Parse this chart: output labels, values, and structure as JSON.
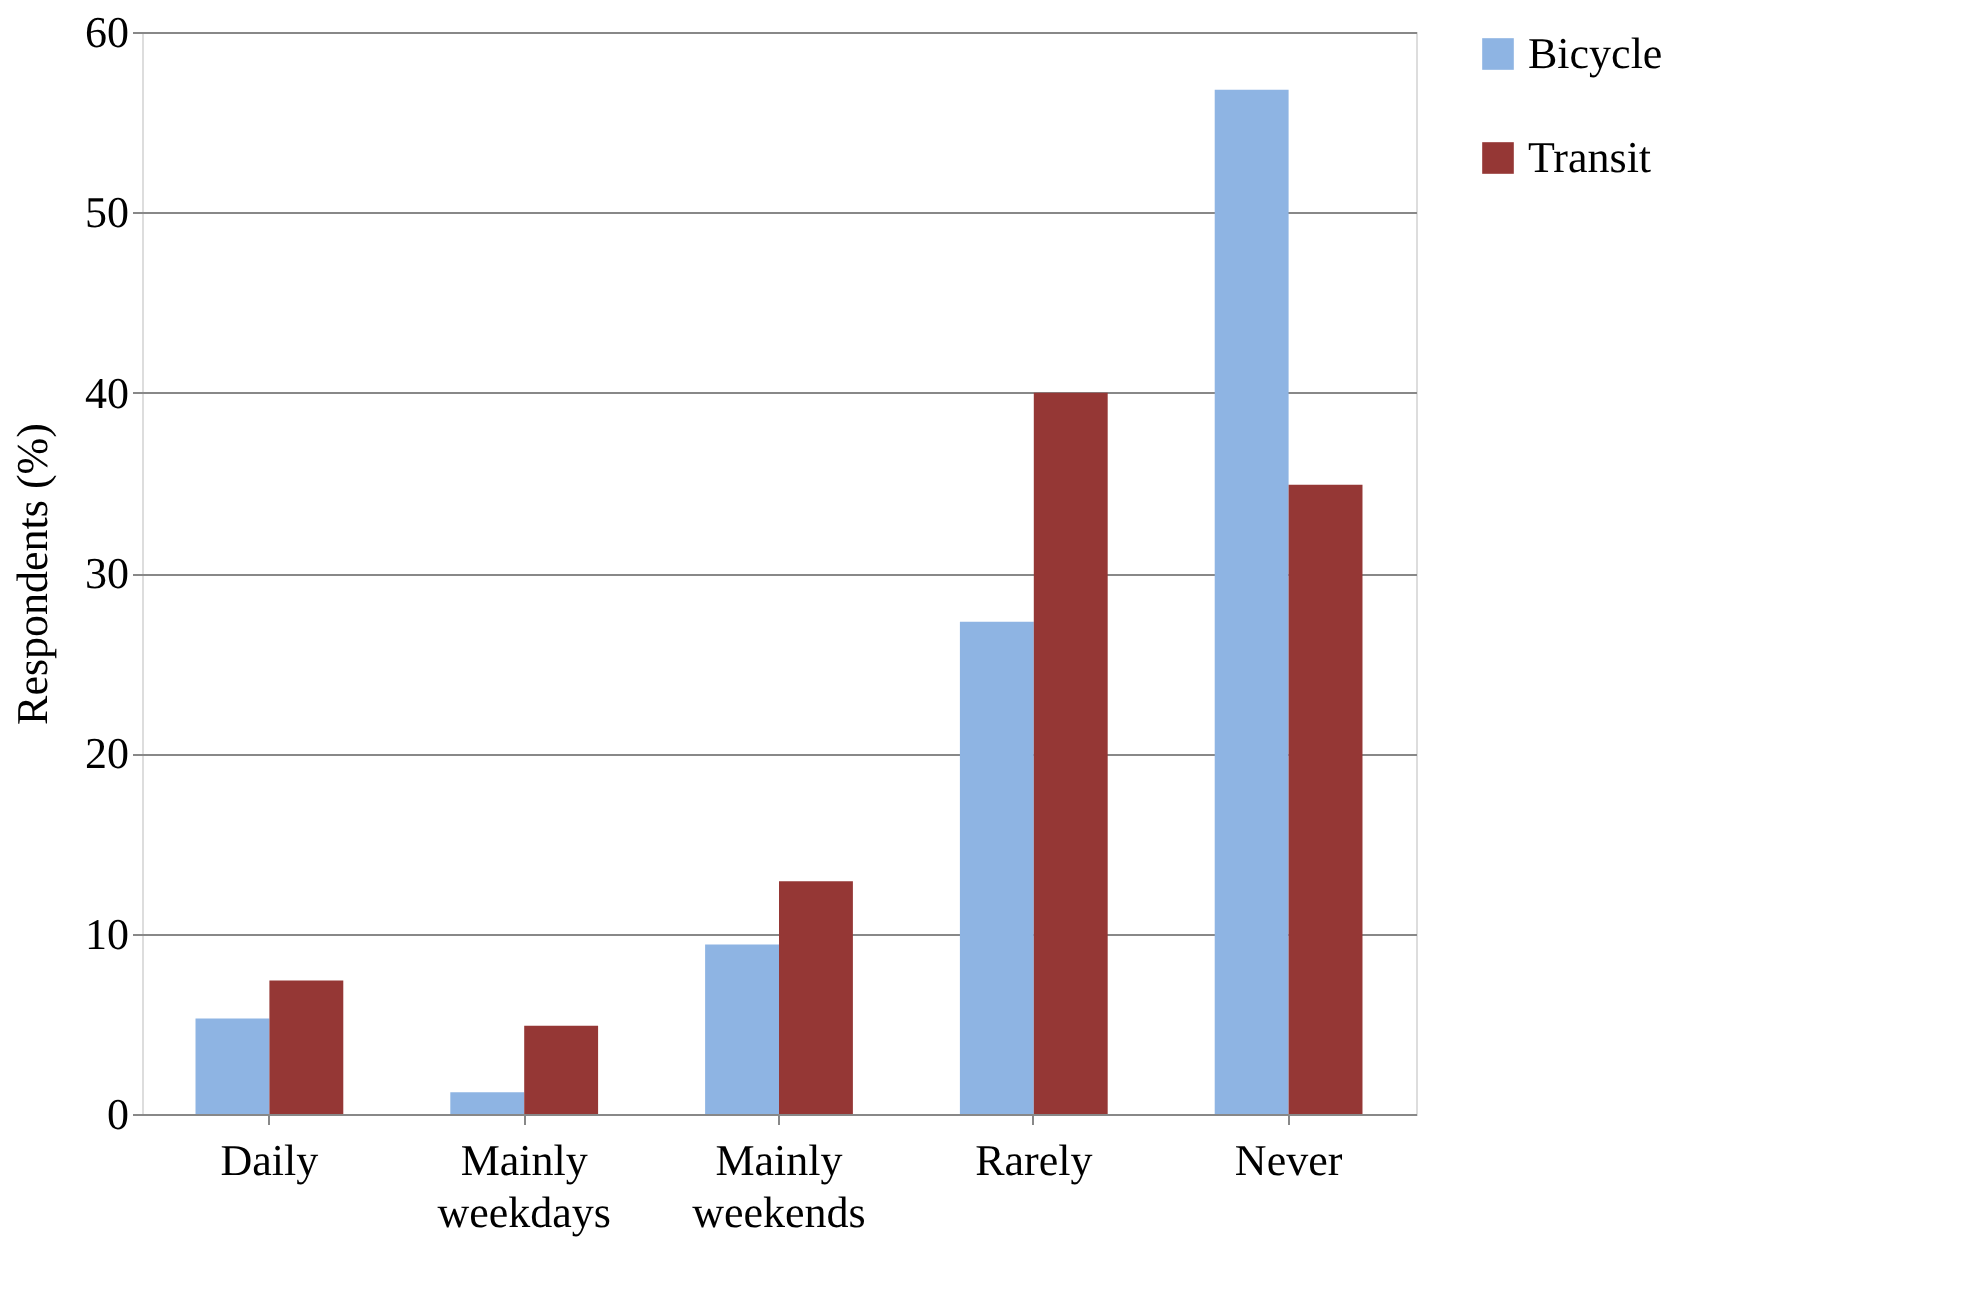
{
  "chart_data": {
    "type": "bar",
    "ylabel": "Respondents (%)",
    "categories": [
      "Daily",
      "Mainly weekdays",
      "Mainly weekends",
      "Rarely",
      "Never"
    ],
    "series": [
      {
        "name": "Bicycle",
        "color": "#8eb4e3",
        "values": [
          5.3,
          1.2,
          9.4,
          27.3,
          56.8
        ]
      },
      {
        "name": "Transit",
        "color": "#953735",
        "values": [
          7.4,
          4.9,
          12.9,
          40.0,
          34.9
        ]
      }
    ],
    "ylim": [
      0,
      60
    ],
    "yticks": [
      0,
      10,
      20,
      30,
      40,
      50,
      60
    ],
    "grid": "y",
    "legend": "right"
  }
}
